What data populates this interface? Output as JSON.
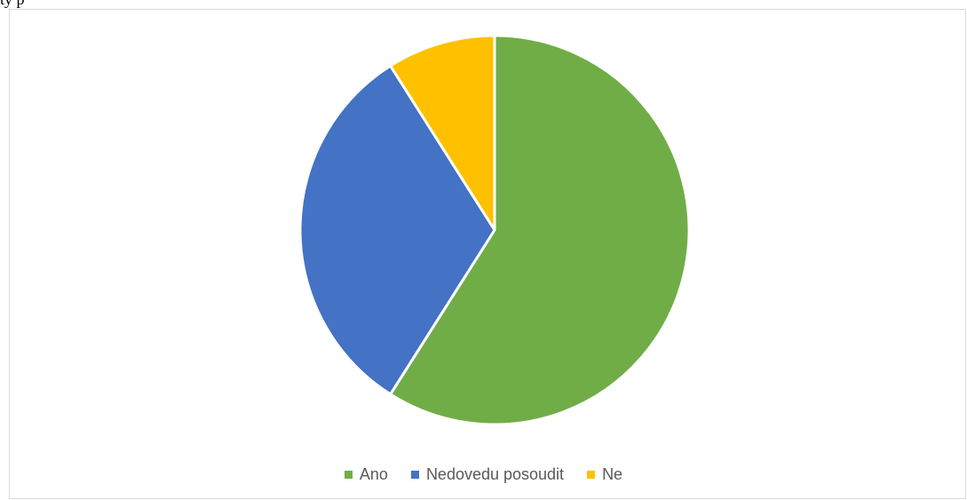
{
  "page": {
    "top_text": "ty          p"
  },
  "chart_data": {
    "type": "pie",
    "categories": [
      "Ano",
      "Nedovedu posoudit",
      "Ne"
    ],
    "values": [
      59,
      32,
      9
    ],
    "colors": [
      "#70AD47",
      "#4472C4",
      "#FFC000"
    ],
    "start_angle_deg": 0,
    "direction": "clockwise",
    "legend_position": "bottom",
    "title": "",
    "xlabel": "",
    "ylabel": ""
  }
}
